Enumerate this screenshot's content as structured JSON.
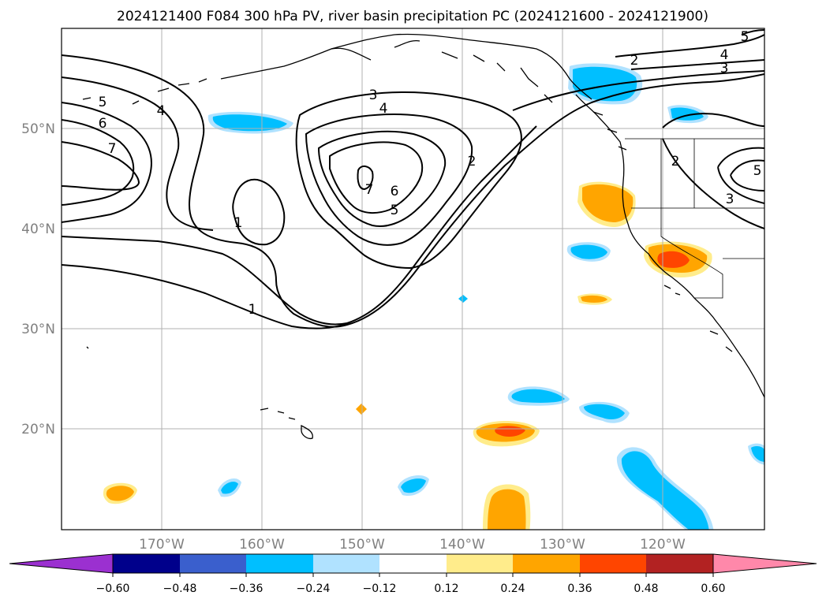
{
  "title": "2024121400 F084 300 hPa PV, river basin precipitation PC (2024121600 - 2024121900)",
  "colors": {
    "neg_060": "#9b30d0",
    "neg_048": "#00008b",
    "neg_036": "#3a5fcd",
    "neg_024": "#00bfff",
    "neg_012": "#b0e2ff",
    "neutral": "#ffffff",
    "pos_012": "#ffec8b",
    "pos_024": "#ffa500",
    "pos_036": "#ff4500",
    "pos_048": "#b22222",
    "pos_060": "#ff88aa"
  },
  "axes": {
    "lat_labels": [
      "50°N",
      "40°N",
      "30°N",
      "20°N"
    ],
    "lon_labels": [
      "170°W",
      "160°W",
      "150°W",
      "140°W",
      "130°W",
      "120°W"
    ]
  },
  "colorbar": {
    "ticks": [
      "−0.60",
      "−0.48",
      "−0.36",
      "−0.24",
      "−0.12",
      "0.12",
      "0.24",
      "0.36",
      "0.48",
      "0.60"
    ]
  },
  "contour_labels": [
    "5",
    "6",
    "7",
    "4",
    "3",
    "4",
    "1",
    "7",
    "6",
    "5",
    "1",
    "2",
    "2",
    "3",
    "4",
    "5",
    "2",
    "3",
    "5"
  ]
}
